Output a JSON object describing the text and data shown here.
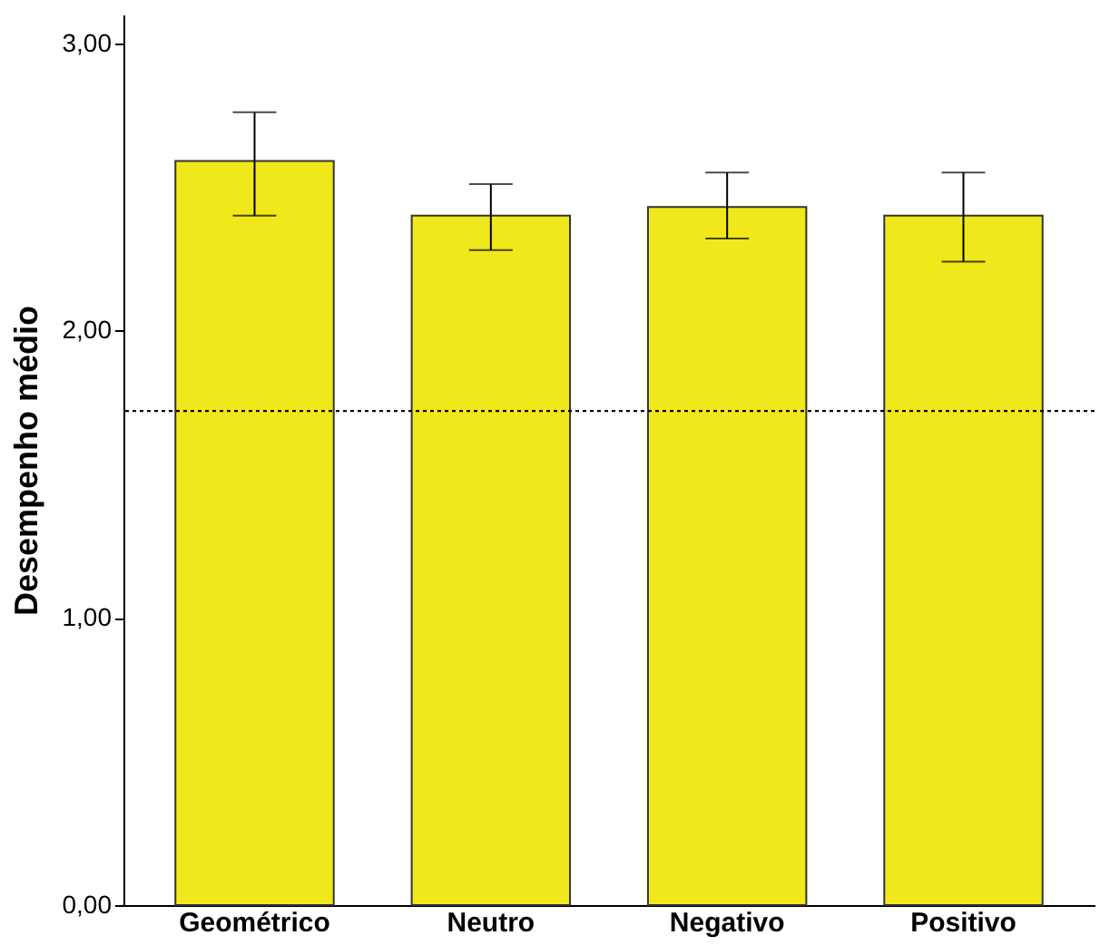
{
  "chart_data": {
    "type": "bar",
    "ylabel": "Desempenho médio",
    "categories": [
      "Geométrico",
      "Neutro",
      "Negativo",
      "Positivo"
    ],
    "values": [
      2.59,
      2.4,
      2.43,
      2.4
    ],
    "errors": [
      [
        2.4,
        2.76
      ],
      [
        2.28,
        2.51
      ],
      [
        2.32,
        2.55
      ],
      [
        2.24,
        2.55
      ]
    ],
    "color": "#f0e81a",
    "ylim": [
      0,
      3.1
    ],
    "yticks": [
      {
        "value": 0,
        "label": "0,00"
      },
      {
        "value": 1,
        "label": "1,00"
      },
      {
        "value": 2,
        "label": "2,00"
      },
      {
        "value": 3,
        "label": "3,00"
      }
    ],
    "ref_lines": [
      {
        "axis": "y",
        "value": 1.72,
        "line_style": "dotted",
        "color": "#000000"
      }
    ],
    "grid": false
  }
}
